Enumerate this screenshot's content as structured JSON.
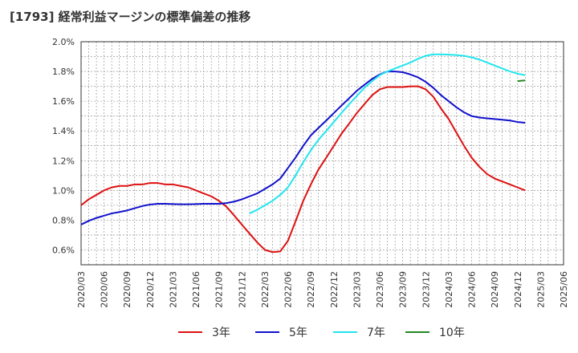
{
  "chart_data": {
    "type": "line",
    "title": "[1793]  経常利益マージンの標準偏差の推移",
    "x_ticks": [
      "2020/03",
      "2020/06",
      "2020/09",
      "2020/12",
      "2021/03",
      "2021/06",
      "2021/09",
      "2021/12",
      "2022/03",
      "2022/06",
      "2022/09",
      "2022/12",
      "2023/03",
      "2023/06",
      "2023/09",
      "2023/12",
      "2024/03",
      "2024/06",
      "2024/09",
      "2024/12",
      "2025/03",
      "2025/06"
    ],
    "y_ticks": [
      "0.6%",
      "0.8%",
      "1.0%",
      "1.2%",
      "1.4%",
      "1.6%",
      "1.8%",
      "2.0%"
    ],
    "ylim": [
      0.5,
      2.0
    ],
    "grid": true,
    "legend_position": "bottom",
    "series": [
      {
        "name": "3年",
        "color": "#dd1111",
        "points": [
          [
            0,
            0.9
          ],
          [
            0.33,
            0.94
          ],
          [
            0.67,
            0.97
          ],
          [
            1,
            1.0
          ],
          [
            1.33,
            1.02
          ],
          [
            1.67,
            1.03
          ],
          [
            2,
            1.03
          ],
          [
            2.33,
            1.04
          ],
          [
            2.67,
            1.04
          ],
          [
            3,
            1.05
          ],
          [
            3.33,
            1.05
          ],
          [
            3.67,
            1.04
          ],
          [
            4,
            1.04
          ],
          [
            4.33,
            1.03
          ],
          [
            4.67,
            1.02
          ],
          [
            5,
            1.0
          ],
          [
            5.33,
            0.98
          ],
          [
            5.67,
            0.96
          ],
          [
            6,
            0.93
          ],
          [
            6.33,
            0.89
          ],
          [
            6.67,
            0.83
          ],
          [
            7,
            0.77
          ],
          [
            7.33,
            0.71
          ],
          [
            7.67,
            0.65
          ],
          [
            8,
            0.6
          ],
          [
            8.33,
            0.585
          ],
          [
            8.67,
            0.59
          ],
          [
            9,
            0.66
          ],
          [
            9.33,
            0.79
          ],
          [
            9.67,
            0.93
          ],
          [
            10,
            1.04
          ],
          [
            10.33,
            1.14
          ],
          [
            10.67,
            1.22
          ],
          [
            11,
            1.3
          ],
          [
            11.33,
            1.38
          ],
          [
            11.67,
            1.45
          ],
          [
            12,
            1.52
          ],
          [
            12.33,
            1.58
          ],
          [
            12.67,
            1.64
          ],
          [
            13,
            1.68
          ],
          [
            13.33,
            1.695
          ],
          [
            13.67,
            1.695
          ],
          [
            14,
            1.695
          ],
          [
            14.33,
            1.7
          ],
          [
            14.67,
            1.7
          ],
          [
            15,
            1.68
          ],
          [
            15.33,
            1.63
          ],
          [
            15.67,
            1.55
          ],
          [
            16,
            1.48
          ],
          [
            16.33,
            1.39
          ],
          [
            16.67,
            1.3
          ],
          [
            17,
            1.22
          ],
          [
            17.33,
            1.16
          ],
          [
            17.67,
            1.11
          ],
          [
            18,
            1.08
          ],
          [
            18.33,
            1.06
          ],
          [
            18.67,
            1.04
          ],
          [
            19,
            1.02
          ],
          [
            19.33,
            1.0
          ]
        ]
      },
      {
        "name": "5年",
        "color": "#1111cc",
        "points": [
          [
            0,
            0.77
          ],
          [
            0.33,
            0.795
          ],
          [
            0.67,
            0.815
          ],
          [
            1,
            0.83
          ],
          [
            1.33,
            0.845
          ],
          [
            1.67,
            0.855
          ],
          [
            2,
            0.865
          ],
          [
            2.33,
            0.88
          ],
          [
            2.67,
            0.895
          ],
          [
            3,
            0.905
          ],
          [
            3.33,
            0.91
          ],
          [
            3.67,
            0.91
          ],
          [
            4,
            0.908
          ],
          [
            4.33,
            0.907
          ],
          [
            4.67,
            0.907
          ],
          [
            5,
            0.908
          ],
          [
            5.33,
            0.91
          ],
          [
            5.67,
            0.91
          ],
          [
            6,
            0.91
          ],
          [
            6.33,
            0.915
          ],
          [
            6.67,
            0.925
          ],
          [
            7,
            0.94
          ],
          [
            7.33,
            0.96
          ],
          [
            7.67,
            0.98
          ],
          [
            8,
            1.01
          ],
          [
            8.33,
            1.04
          ],
          [
            8.67,
            1.08
          ],
          [
            9,
            1.15
          ],
          [
            9.33,
            1.22
          ],
          [
            9.67,
            1.3
          ],
          [
            10,
            1.37
          ],
          [
            10.33,
            1.42
          ],
          [
            10.67,
            1.47
          ],
          [
            11,
            1.52
          ],
          [
            11.33,
            1.57
          ],
          [
            11.67,
            1.62
          ],
          [
            12,
            1.67
          ],
          [
            12.33,
            1.71
          ],
          [
            12.67,
            1.75
          ],
          [
            13,
            1.78
          ],
          [
            13.33,
            1.8
          ],
          [
            13.67,
            1.8
          ],
          [
            14,
            1.795
          ],
          [
            14.33,
            1.78
          ],
          [
            14.67,
            1.76
          ],
          [
            15,
            1.73
          ],
          [
            15.33,
            1.69
          ],
          [
            15.67,
            1.64
          ],
          [
            16,
            1.6
          ],
          [
            16.33,
            1.56
          ],
          [
            16.67,
            1.525
          ],
          [
            17,
            1.5
          ],
          [
            17.33,
            1.49
          ],
          [
            17.67,
            1.485
          ],
          [
            18,
            1.48
          ],
          [
            18.33,
            1.475
          ],
          [
            18.67,
            1.47
          ],
          [
            19,
            1.46
          ],
          [
            19.33,
            1.455
          ]
        ]
      },
      {
        "name": "7年",
        "color": "#22e5ee",
        "points": [
          [
            7.33,
            0.845
          ],
          [
            7.67,
            0.87
          ],
          [
            8,
            0.9
          ],
          [
            8.33,
            0.93
          ],
          [
            8.67,
            0.97
          ],
          [
            9,
            1.02
          ],
          [
            9.33,
            1.1
          ],
          [
            9.67,
            1.19
          ],
          [
            10,
            1.27
          ],
          [
            10.33,
            1.34
          ],
          [
            10.67,
            1.4
          ],
          [
            11,
            1.46
          ],
          [
            11.33,
            1.52
          ],
          [
            11.67,
            1.58
          ],
          [
            12,
            1.635
          ],
          [
            12.33,
            1.69
          ],
          [
            12.67,
            1.735
          ],
          [
            13,
            1.775
          ],
          [
            13.33,
            1.8
          ],
          [
            13.67,
            1.82
          ],
          [
            14,
            1.84
          ],
          [
            14.33,
            1.86
          ],
          [
            14.67,
            1.885
          ],
          [
            15,
            1.905
          ],
          [
            15.33,
            1.915
          ],
          [
            15.67,
            1.915
          ],
          [
            16,
            1.913
          ],
          [
            16.33,
            1.91
          ],
          [
            16.67,
            1.905
          ],
          [
            17,
            1.895
          ],
          [
            17.33,
            1.88
          ],
          [
            17.67,
            1.86
          ],
          [
            18,
            1.84
          ],
          [
            18.33,
            1.82
          ],
          [
            18.67,
            1.8
          ],
          [
            19,
            1.785
          ],
          [
            19.33,
            1.775
          ]
        ]
      },
      {
        "name": "10年",
        "color": "#228822",
        "points": [
          [
            19,
            1.735
          ],
          [
            19.33,
            1.74
          ]
        ]
      }
    ]
  }
}
